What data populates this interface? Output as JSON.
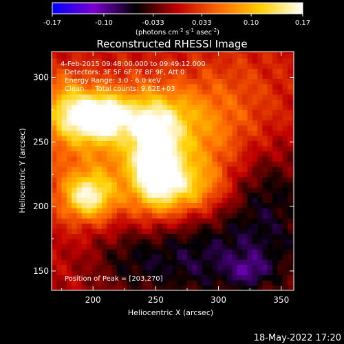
{
  "chart_data": {
    "type": "heatmap",
    "title": "Reconstructed RHESSI Image",
    "xlabel": "Heliocentric X (arcsec)",
    "ylabel": "Heliocentric Y (arcsec)",
    "xlim": [
      167,
      360
    ],
    "ylim": [
      135,
      320
    ],
    "x_ticks": [
      200,
      250,
      300,
      350
    ],
    "y_ticks": [
      150,
      200,
      250,
      300
    ],
    "colorbar": {
      "ticks": [
        "-0.17",
        "-0.10",
        "-0.033",
        "0.033",
        "0.10",
        "0.17"
      ],
      "range": [
        -0.17,
        0.17
      ],
      "unit_text": "(photons cm",
      "unit_exp1": "-2",
      "unit_mid": " s",
      "unit_exp2": "-1",
      "unit_mid2": " asec",
      "unit_exp3": "-2",
      "unit_end": ")",
      "colors": [
        "#0000ff",
        "#7a00d0",
        "#000000",
        "#c00000",
        "#ff6a00",
        "#ffd000",
        "#ffffff"
      ]
    },
    "annotations": [
      "4-Feb-2015 09:48:00.000 to 09:49:12.000",
      "Detectors: 3F 5F 6F 7F 8F 9F, Att 0",
      "Energy Range: 3.0 - 6.0 keV",
      "Clean     Total counts: 9.62E+03"
    ],
    "peak_label": "Position of Peak = [203,270]",
    "sources": [
      {
        "x": 203,
        "y": 270,
        "peak": 0.165,
        "sx": 14,
        "sy": 12
      },
      {
        "x": 250,
        "y": 232,
        "peak": 0.16,
        "sx": 13,
        "sy": 22
      },
      {
        "x": 196,
        "y": 208,
        "peak": 0.13,
        "sx": 14,
        "sy": 12
      },
      {
        "x": 178,
        "y": 275,
        "peak": 0.09,
        "sx": 12,
        "sy": 18
      },
      {
        "x": 275,
        "y": 215,
        "peak": 0.08,
        "sx": 20,
        "sy": 14
      },
      {
        "x": 240,
        "y": 270,
        "peak": 0.08,
        "sx": 25,
        "sy": 14
      },
      {
        "x": 280,
        "y": 255,
        "peak": 0.06,
        "sx": 30,
        "sy": 30
      },
      {
        "x": 215,
        "y": 240,
        "peak": 0.06,
        "sx": 40,
        "sy": 40
      },
      {
        "x": 320,
        "y": 290,
        "peak": 0.025,
        "sx": 30,
        "sy": 30
      }
    ],
    "negative_regions": [
      {
        "x": 300,
        "y": 160,
        "peak": -0.07,
        "sx": 55,
        "sy": 25
      },
      {
        "x": 340,
        "y": 210,
        "peak": -0.05,
        "sx": 25,
        "sy": 25
      },
      {
        "x": 325,
        "y": 150,
        "peak": -0.04,
        "sx": 10,
        "sy": 8
      },
      {
        "x": 230,
        "y": 160,
        "peak": -0.03,
        "sx": 25,
        "sy": 20
      }
    ]
  },
  "footer": {
    "timestamp": "18-May-2022 17:20"
  }
}
